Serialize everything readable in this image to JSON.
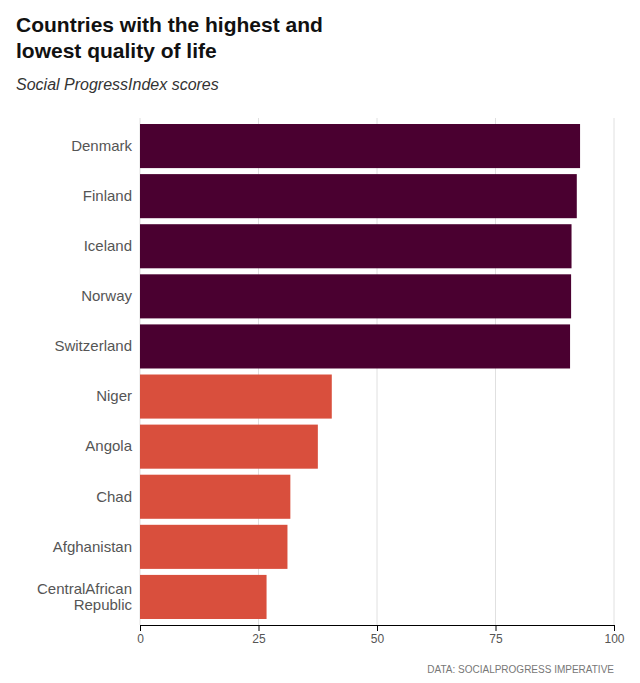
{
  "chart_data": {
    "type": "bar",
    "orientation": "horizontal",
    "title": "Countries with the highest and\nlowest quality of life",
    "subtitle": "Social Progress​Index scores",
    "source": "DATA: SOCIALPROGRESS IMPERATIVE",
    "categories": [
      "Denmark",
      "Finland",
      "Iceland",
      "Norway",
      "Switzerland",
      "Niger",
      "Angola",
      "Chad",
      "Afghanistan",
      "CentralAfrican\nRepublic"
    ],
    "values": [
      92.84,
      92.15,
      91.04,
      90.95,
      90.73,
      40.46,
      37.52,
      31.72,
      31.11,
      26.7
    ],
    "colors": [
      "#4a0030",
      "#4a0030",
      "#4a0030",
      "#4a0030",
      "#4a0030",
      "#d94f3d",
      "#d94f3d",
      "#d94f3d",
      "#d94f3d",
      "#d94f3d"
    ],
    "xlim": [
      0,
      100
    ],
    "xticks": [
      0,
      25,
      50,
      75,
      100
    ],
    "grid": true
  }
}
